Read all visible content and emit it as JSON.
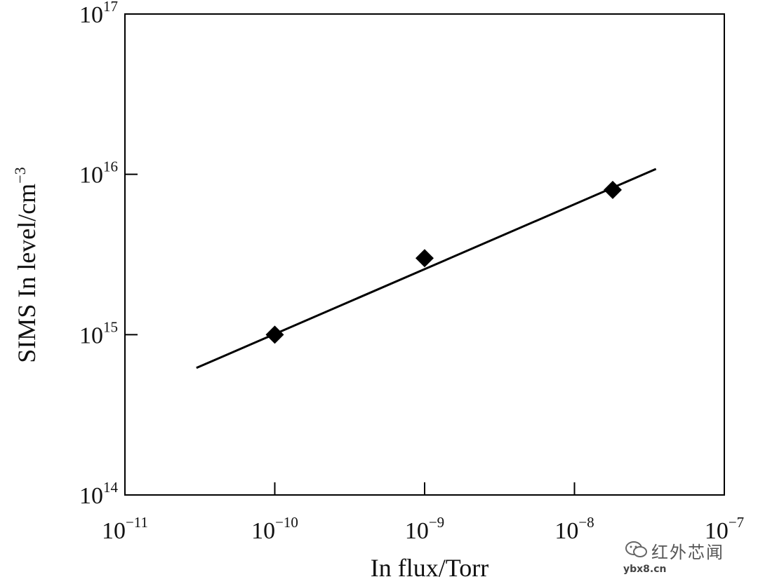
{
  "chart_data": {
    "type": "scatter",
    "xlabel": "In flux/Torr",
    "ylabel": "SIMS In level/cm",
    "ylabel_sup": "−3",
    "xscale": "log",
    "yscale": "log",
    "xlim": [
      1e-11,
      1e-07
    ],
    "ylim": [
      100000000000000.0,
      1e+17
    ],
    "x_ticks": [
      {
        "value": 1e-11,
        "base": "10",
        "exp": "−11"
      },
      {
        "value": 1e-10,
        "base": "10",
        "exp": "−10"
      },
      {
        "value": 1e-09,
        "base": "10",
        "exp": "−9"
      },
      {
        "value": 1e-08,
        "base": "10",
        "exp": "−8"
      },
      {
        "value": 1e-07,
        "base": "10",
        "exp": "−7"
      }
    ],
    "y_ticks": [
      {
        "value": 100000000000000.0,
        "base": "10",
        "exp": "14"
      },
      {
        "value": 1000000000000000.0,
        "base": "10",
        "exp": "15"
      },
      {
        "value": 1e+16,
        "base": "10",
        "exp": "16"
      },
      {
        "value": 1e+17,
        "base": "10",
        "exp": "17"
      }
    ],
    "points": [
      {
        "x": 1e-10,
        "y": 1000000000000000.0
      },
      {
        "x": 1e-09,
        "y": 3000000000000000.0
      },
      {
        "x": 1.8e-08,
        "y": 8000000000000000.0
      }
    ],
    "fit_line": {
      "x": [
        3e-11,
        3.5e-08
      ],
      "y": [
        620000000000000.0,
        1.08e+16
      ]
    },
    "marker": "filled-diamond",
    "grid": false,
    "legend": "none"
  },
  "watermark": {
    "text": "红外芯闻",
    "subtext": "ybx8.cn"
  }
}
